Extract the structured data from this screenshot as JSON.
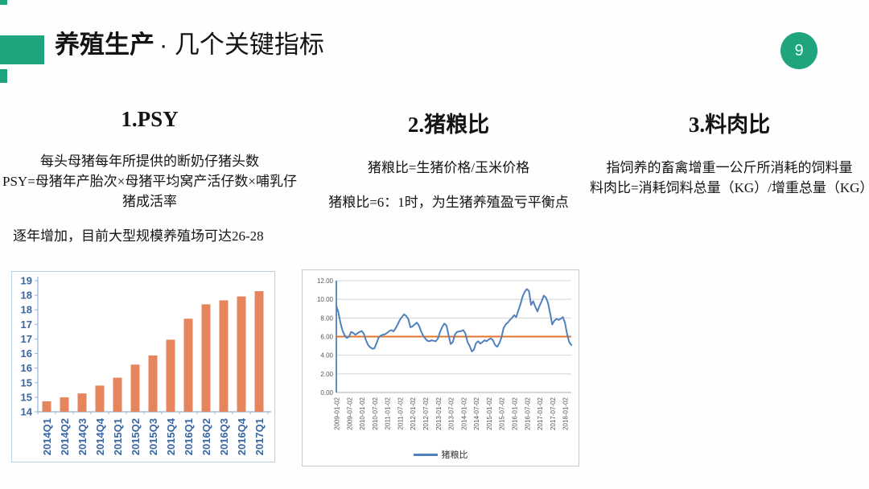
{
  "slide": {
    "title_main": "养殖生产",
    "title_rest": "· 几个关键指标",
    "page_number": "9",
    "accent_color": "#1fa47e"
  },
  "columns": [
    {
      "heading": "1.PSY",
      "lines": [
        "每头母猪每年所提供的断奶仔猪头数",
        "PSY=母猪年产胎次×母猪平均窝产活仔数×哺乳仔猪成活率"
      ],
      "note": "逐年增加，目前大型规模养殖场可达26-28"
    },
    {
      "heading": "2.猪粮比",
      "lines": [
        "猪粮比=生猪价格/玉米价格",
        "猪粮比=6：1时，为生猪养殖盈亏平衡点"
      ]
    },
    {
      "heading": "3.料肉比",
      "lines": [
        "指饲养的畜禽增重一公斤所消耗的饲料量",
        "料肉比=消耗饲料总量（KG）/增重总量（KG）"
      ]
    }
  ],
  "chart_data": [
    {
      "type": "bar",
      "title": "",
      "categories": [
        "2014Q1",
        "2014Q2",
        "2014Q3",
        "2014Q4",
        "2015Q1",
        "2015Q2",
        "2015Q3",
        "2015Q4",
        "2016Q1",
        "2016Q2",
        "2016Q3",
        "2016Q4",
        "2017Q1"
      ],
      "values": [
        14.4,
        14.55,
        14.7,
        15.0,
        15.3,
        15.8,
        16.15,
        16.75,
        17.55,
        18.1,
        18.25,
        18.4,
        18.6
      ],
      "xlabel": "",
      "ylabel": "",
      "ylim": [
        14,
        19
      ],
      "y_tick_labels": [
        "19",
        "18",
        "18",
        "17",
        "17",
        "16",
        "16",
        "15",
        "15",
        "14"
      ],
      "grid": false,
      "bar_color": "#e5855e",
      "axis_color": "#95b3d7",
      "tick_label_color": "#3b66a0"
    },
    {
      "type": "line",
      "title": "",
      "legend": "猪粮比",
      "legend_position": "bottom",
      "x_tick_labels": [
        "2009-01-02",
        "2009-07-02",
        "2010-01-02",
        "2010-07-02",
        "2011-01-02",
        "2011-07-02",
        "2012-01-02",
        "2012-07-02",
        "2013-01-02",
        "2013-07-02",
        "2014-01-02",
        "2014-07-02",
        "2015-01-02",
        "2015-07-02",
        "2016-01-02",
        "2016-07-02",
        "2017-01-02",
        "2017-07-02",
        "2018-01-02"
      ],
      "x_tick_month_index": [
        0,
        6,
        12,
        18,
        24,
        30,
        36,
        42,
        48,
        54,
        60,
        66,
        72,
        78,
        84,
        90,
        96,
        102,
        108
      ],
      "ylim": [
        0,
        12
      ],
      "y_ticks": [
        0,
        2,
        4,
        6,
        8,
        10,
        12
      ],
      "y_tick_labels": [
        "0.00",
        "2.00",
        "4.00",
        "6.00",
        "8.00",
        "10.00",
        "12.00"
      ],
      "grid": true,
      "reference_line": {
        "value": 6.0,
        "color": "#e2762f"
      },
      "series": [
        {
          "name": "猪粮比",
          "color": "#4f81bd",
          "start": "2009-01",
          "interval": "monthly",
          "values": [
            9.3,
            8.6,
            7.4,
            6.6,
            6.1,
            5.85,
            6.0,
            6.5,
            6.4,
            6.2,
            6.35,
            6.5,
            6.6,
            6.3,
            5.6,
            5.1,
            4.85,
            4.7,
            4.75,
            5.3,
            5.9,
            6.1,
            6.2,
            6.25,
            6.4,
            6.6,
            6.7,
            6.55,
            6.9,
            7.3,
            7.8,
            8.1,
            8.4,
            8.2,
            7.9,
            7.0,
            7.1,
            7.3,
            7.5,
            7.2,
            6.6,
            6.1,
            5.8,
            5.55,
            5.5,
            5.6,
            5.55,
            5.5,
            5.8,
            6.5,
            7.0,
            7.4,
            7.2,
            6.2,
            5.2,
            5.4,
            6.2,
            6.5,
            6.55,
            6.6,
            6.7,
            6.3,
            5.4,
            5.0,
            4.4,
            4.6,
            5.3,
            5.5,
            5.25,
            5.4,
            5.6,
            5.5,
            5.7,
            5.8,
            5.6,
            5.1,
            4.9,
            5.3,
            5.9,
            6.9,
            7.3,
            7.5,
            7.8,
            8.0,
            8.3,
            8.1,
            8.8,
            9.5,
            10.3,
            10.8,
            11.1,
            10.9,
            9.4,
            9.8,
            9.2,
            8.7,
            9.3,
            9.8,
            10.4,
            10.2,
            9.6,
            8.5,
            7.3,
            7.7,
            7.9,
            7.8,
            7.9,
            8.1,
            7.5,
            6.3,
            5.4,
            5.1
          ]
        }
      ]
    }
  ]
}
